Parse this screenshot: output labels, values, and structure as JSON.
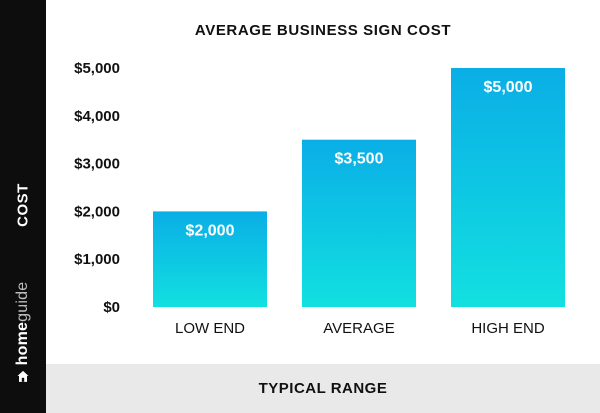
{
  "chart_data": {
    "type": "bar",
    "title": "AVERAGE BUSINESS SIGN COST",
    "xlabel": "TYPICAL RANGE",
    "ylabel": "COST",
    "categories": [
      "LOW END",
      "AVERAGE",
      "HIGH END"
    ],
    "values": [
      2000,
      3500,
      5000
    ],
    "data_labels": [
      "$2,000",
      "$3,500",
      "$5,000"
    ],
    "ylim": [
      0,
      5000
    ],
    "yticks": [
      0,
      1000,
      2000,
      3000,
      4000,
      5000
    ],
    "ytick_labels": [
      "$0",
      "$1,000",
      "$2,000",
      "$3,000",
      "$4,000",
      "$5,000"
    ],
    "grid": false,
    "legend": "none",
    "bar_gradient": {
      "top": "#0aaee6",
      "bottom": "#12e0e0"
    }
  },
  "brand": {
    "name_bold": "home",
    "name_light": "guide",
    "icon": "home-icon",
    "color": "#ffffff"
  },
  "colors": {
    "sidebar": "#0d0d0d",
    "footer": "#e9e9e9",
    "text": "#111111"
  }
}
